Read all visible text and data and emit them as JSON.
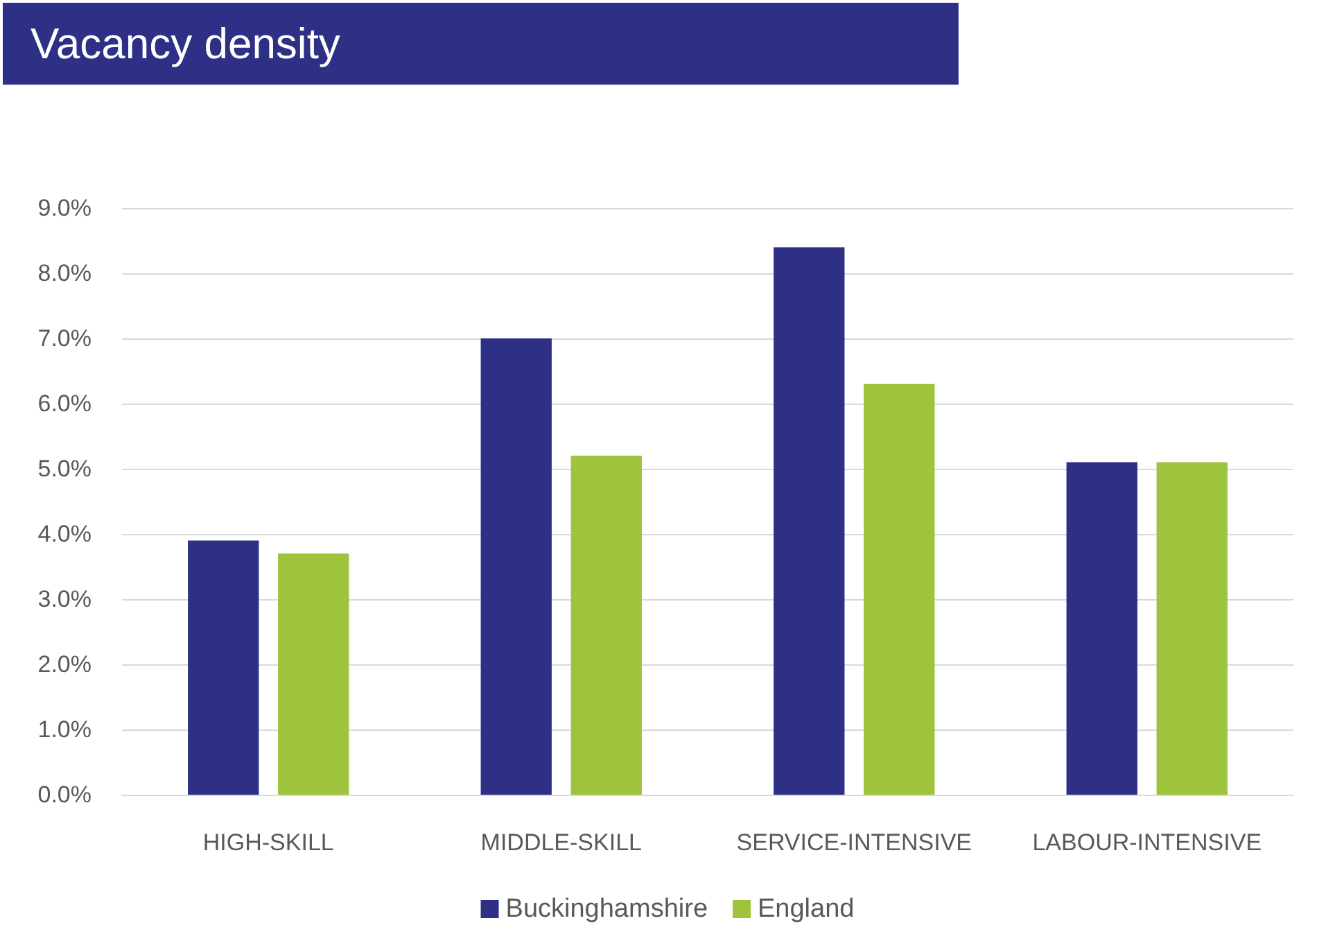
{
  "chart_data": {
    "type": "bar",
    "title": "Vacancy density",
    "categories": [
      "HIGH-SKILL",
      "MIDDLE-SKILL",
      "SERVICE-INTENSIVE",
      "LABOUR-INTENSIVE"
    ],
    "series": [
      {
        "name": "Buckinghamshire",
        "color": "#2e3086",
        "values": [
          3.9,
          7.0,
          8.4,
          5.1
        ]
      },
      {
        "name": "England",
        "color": "#9dc43c",
        "values": [
          3.7,
          5.2,
          6.3,
          5.1
        ]
      }
    ],
    "ylim": [
      0,
      9
    ],
    "yticks": [
      {
        "value": 0,
        "label": "0.0%"
      },
      {
        "value": 1,
        "label": "1.0%"
      },
      {
        "value": 2,
        "label": "2.0%"
      },
      {
        "value": 3,
        "label": "3.0%"
      },
      {
        "value": 4,
        "label": "4.0%"
      },
      {
        "value": 5,
        "label": "5.0%"
      },
      {
        "value": 6,
        "label": "6.0%"
      },
      {
        "value": 7,
        "label": "7.0%"
      },
      {
        "value": 8,
        "label": "8.0%"
      },
      {
        "value": 9,
        "label": "9.0%"
      }
    ],
    "grid": "y",
    "legend": "bottom"
  }
}
